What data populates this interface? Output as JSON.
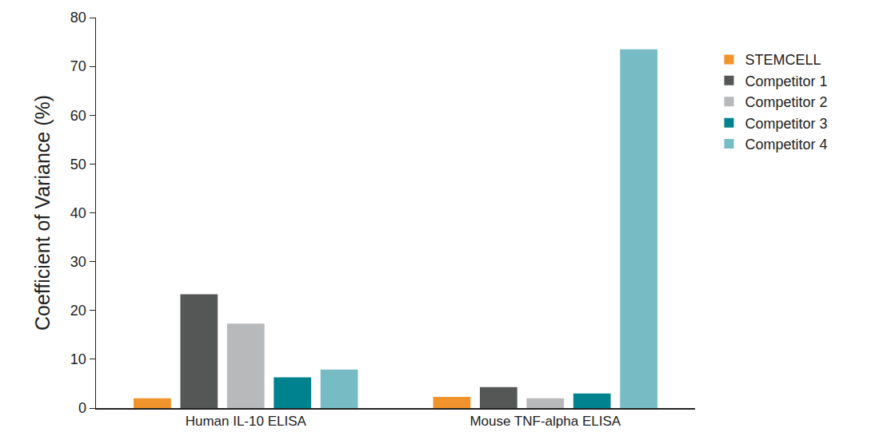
{
  "chart_data": {
    "type": "bar",
    "y_label": "Coefficient of Variance (%)",
    "categories": [
      "Human IL-10 ELISA",
      "Mouse TNF-alpha ELISA"
    ],
    "series": [
      {
        "name": "STEMCELL",
        "color": "#f0932a",
        "values": [
          2.0,
          2.3
        ]
      },
      {
        "name": "Competitor 1",
        "color": "#555756",
        "values": [
          23.3,
          4.3
        ]
      },
      {
        "name": "Competitor 2",
        "color": "#b8b9ba",
        "values": [
          17.3,
          2.0
        ]
      },
      {
        "name": "Competitor 3",
        "color": "#00838f",
        "values": [
          6.3,
          3.0
        ]
      },
      {
        "name": "Competitor 4",
        "color": "#77bcc4",
        "values": [
          7.9,
          73.5
        ]
      }
    ],
    "ylim": [
      0,
      80
    ],
    "yticks": [
      0,
      10,
      20,
      30,
      40,
      50,
      60,
      70,
      80
    ],
    "grid": false,
    "legend": "right"
  }
}
